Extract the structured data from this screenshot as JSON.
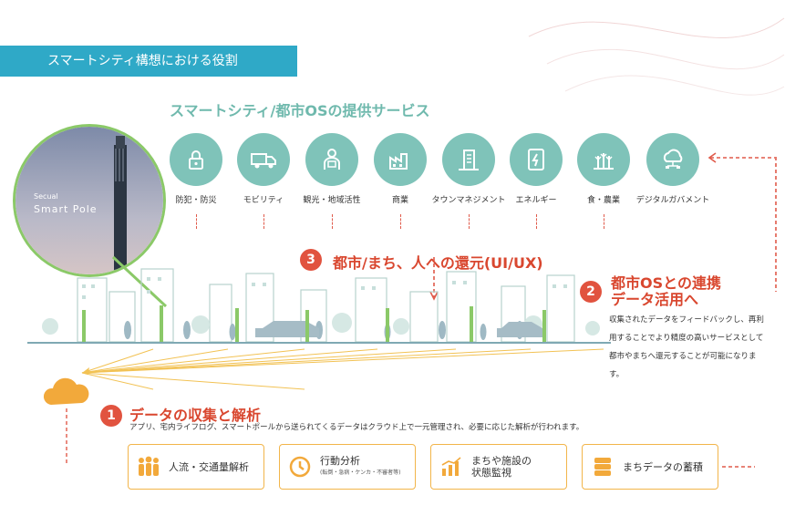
{
  "banner": {
    "title": "スマートシティ構想における役割"
  },
  "services": {
    "title": "スマートシティ/都市OSの提供サービス",
    "items": [
      {
        "label": "防犯・防災",
        "icon": "lock-icon"
      },
      {
        "label": "モビリティ",
        "icon": "truck-icon"
      },
      {
        "label": "観光・地域活性",
        "icon": "tourist-icon"
      },
      {
        "label": "商業",
        "icon": "factory-icon"
      },
      {
        "label": "タウンマネジメント",
        "icon": "building-icon"
      },
      {
        "label": "エネルギー",
        "icon": "energy-device-icon"
      },
      {
        "label": "食・農業",
        "icon": "crops-icon"
      },
      {
        "label": "デジタルガバメント",
        "icon": "cloud-network-icon"
      }
    ]
  },
  "pole": {
    "brand": "Secual",
    "product": "Smart Pole"
  },
  "step3": {
    "number": "3",
    "title": "都市/まち、人への還元(UI/UX)"
  },
  "step2": {
    "number": "2",
    "title_line1": "都市OSとの連携",
    "title_line2": "データ活用へ",
    "desc": "収集されたデータをフィードバックし、再利用することでより精度の高いサービスとして都市やまちへ還元することが可能になります。"
  },
  "step1": {
    "number": "1",
    "title": "データの収集と解析",
    "desc": "アプリ、宅内ライフログ、スマートポールから送られてくるデータはクラウド上で一元管理され、必要に応じた解析が行われます。"
  },
  "boxes": [
    {
      "label": "人流・交通量解析",
      "sub": "",
      "icon": "people-icon"
    },
    {
      "label": "行動分析",
      "sub": "(転倒・急病・ケンカ・不審者等)",
      "icon": "clock-icon"
    },
    {
      "label": "まちや施設の",
      "label2": "状態監視",
      "sub": "",
      "icon": "bar-chart-icon"
    },
    {
      "label": "まちデータの蓄積",
      "sub": "",
      "icon": "database-icon"
    }
  ],
  "colors": {
    "accent_teal": "#2fa9c7",
    "service_teal": "#7fc3b9",
    "red": "#e1533f",
    "orange": "#f2a93b",
    "green": "#8bc968"
  }
}
